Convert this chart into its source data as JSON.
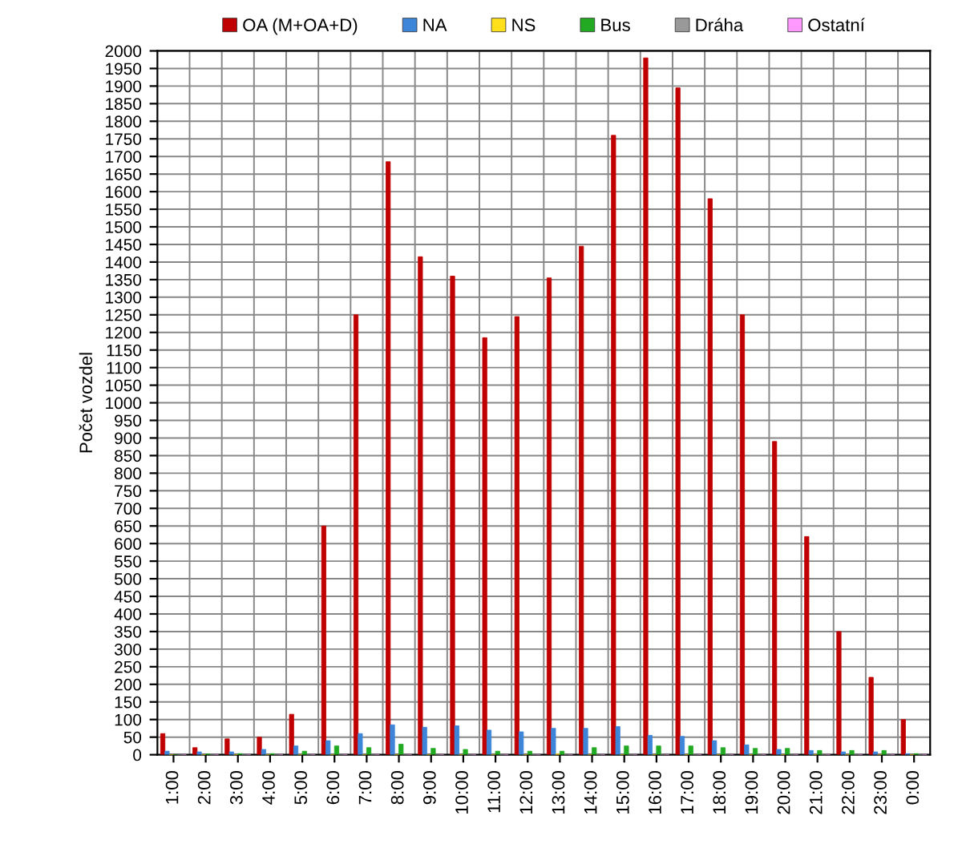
{
  "chart_data": {
    "type": "bar",
    "ylabel": "Počet vozdel",
    "categories": [
      "1:00",
      "2:00",
      "3:00",
      "4:00",
      "5:00",
      "6:00",
      "7:00",
      "8:00",
      "9:00",
      "10:00",
      "11:00",
      "12:00",
      "13:00",
      "14:00",
      "15:00",
      "16:00",
      "17:00",
      "18:00",
      "19:00",
      "20:00",
      "21:00",
      "22:00",
      "23:00",
      "0:00"
    ],
    "series": [
      {
        "name": "OA (M+OA+D)",
        "color": "#c00000",
        "values": [
          60,
          20,
          45,
          50,
          115,
          650,
          1250,
          1685,
          1415,
          1360,
          1185,
          1245,
          1355,
          1445,
          1760,
          1980,
          1895,
          1580,
          1250,
          890,
          620,
          350,
          220,
          100
        ]
      },
      {
        "name": "NA",
        "color": "#3d85d8",
        "values": [
          10,
          8,
          8,
          15,
          25,
          40,
          60,
          85,
          78,
          82,
          70,
          65,
          75,
          75,
          80,
          55,
          52,
          40,
          28,
          15,
          12,
          8,
          8,
          3
        ]
      },
      {
        "name": "NS",
        "color": "#ffe01a",
        "values": [
          0,
          0,
          0,
          0,
          0,
          0,
          0,
          0,
          0,
          0,
          0,
          0,
          2,
          0,
          0,
          0,
          0,
          0,
          0,
          0,
          0,
          0,
          0,
          0
        ]
      },
      {
        "name": "Bus",
        "color": "#22aa22",
        "values": [
          0,
          2,
          3,
          3,
          10,
          25,
          20,
          30,
          18,
          15,
          10,
          10,
          10,
          20,
          25,
          25,
          25,
          20,
          18,
          18,
          12,
          12,
          12,
          3
        ]
      },
      {
        "name": "Dráha",
        "color": "#999999",
        "values": [
          0,
          0,
          0,
          0,
          0,
          0,
          0,
          0,
          0,
          0,
          0,
          0,
          0,
          0,
          0,
          0,
          0,
          0,
          0,
          0,
          0,
          0,
          0,
          0
        ]
      },
      {
        "name": "Ostatní",
        "color": "#ff99ff",
        "values": [
          0,
          0,
          0,
          0,
          0,
          0,
          0,
          0,
          0,
          0,
          0,
          0,
          0,
          0,
          0,
          0,
          0,
          0,
          0,
          0,
          0,
          0,
          0,
          0
        ]
      }
    ],
    "ylim": [
      0,
      2000
    ],
    "yticks": [
      0,
      50,
      100,
      150,
      200,
      250,
      300,
      350,
      400,
      450,
      500,
      550,
      600,
      650,
      700,
      750,
      800,
      850,
      900,
      950,
      1000,
      1050,
      1100,
      1150,
      1200,
      1250,
      1300,
      1350,
      1400,
      1450,
      1500,
      1550,
      1600,
      1650,
      1700,
      1750,
      1800,
      1850,
      1900,
      1950,
      2000
    ],
    "grid": true,
    "legend": "top"
  }
}
